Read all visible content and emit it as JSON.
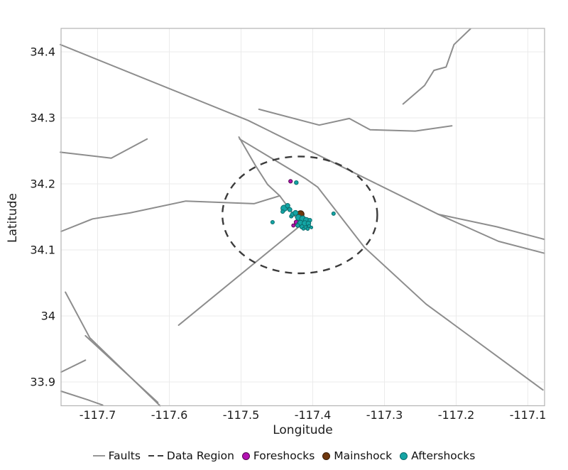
{
  "chart_data": {
    "type": "scatter",
    "title": "",
    "xlabel": "Longitude",
    "ylabel": "Latitude",
    "xlim": [
      -117.751,
      -117.0767
    ],
    "ylim": [
      33.864,
      34.4355
    ],
    "grid": true,
    "legend_position": "bottom",
    "x_ticks": {
      "values": [
        -117.7,
        -117.6,
        -117.5,
        -117.4,
        -117.3,
        -117.2,
        -117.1
      ],
      "labels": [
        "-117.7",
        "-117.6",
        "-117.5",
        "-117.4",
        "-117.3",
        "-117.2",
        "-117.1"
      ]
    },
    "y_ticks": {
      "values": [
        34.4,
        34.3,
        34.2,
        34.1,
        34.0,
        33.9
      ],
      "labels": [
        "34.4",
        "34.3",
        "34.2",
        "34.1",
        "34",
        "33.9"
      ]
    },
    "faults": [
      [
        [
          -117.752,
          34.411
        ],
        [
          -117.49,
          34.296
        ],
        [
          -117.225,
          34.154
        ]
      ],
      [
        [
          -117.225,
          34.154
        ],
        [
          -117.143,
          34.135
        ],
        [
          -117.077,
          34.116
        ]
      ],
      [
        [
          -117.225,
          34.154
        ],
        [
          -117.141,
          34.113
        ],
        [
          -117.077,
          34.095
        ]
      ],
      [
        [
          -117.475,
          34.313
        ],
        [
          -117.391,
          34.289
        ],
        [
          -117.349,
          34.299
        ],
        [
          -117.32,
          34.282
        ],
        [
          -117.257,
          34.28
        ],
        [
          -117.206,
          34.288
        ]
      ],
      [
        [
          -117.752,
          34.248
        ],
        [
          -117.681,
          34.239
        ],
        [
          -117.631,
          34.268
        ]
      ],
      [
        [
          -117.751,
          34.128
        ],
        [
          -117.707,
          34.147
        ],
        [
          -117.655,
          34.156
        ],
        [
          -117.577,
          34.174
        ],
        [
          -117.482,
          34.17
        ],
        [
          -117.446,
          34.182
        ]
      ],
      [
        [
          -117.502,
          34.268
        ],
        [
          -117.41,
          34.208
        ],
        [
          -117.393,
          34.195
        ],
        [
          -117.328,
          34.104
        ],
        [
          -117.242,
          34.018
        ],
        [
          -117.079,
          33.888
        ]
      ],
      [
        [
          -117.503,
          34.271
        ],
        [
          -117.48,
          34.228
        ],
        [
          -117.463,
          34.199
        ],
        [
          -117.446,
          34.182
        ],
        [
          -117.416,
          34.138
        ],
        [
          -117.587,
          33.986
        ]
      ],
      [
        [
          -117.745,
          34.036
        ],
        [
          -117.711,
          33.967
        ],
        [
          -117.613,
          33.864
        ]
      ],
      [
        [
          -117.717,
          33.97
        ],
        [
          -117.616,
          33.869
        ]
      ],
      [
        [
          -117.751,
          33.915
        ],
        [
          -117.717,
          33.933
        ]
      ],
      [
        [
          -117.751,
          33.886
        ],
        [
          -117.714,
          33.873
        ],
        [
          -117.693,
          33.865
        ]
      ],
      [
        [
          -117.274,
          34.321
        ],
        [
          -117.244,
          34.349
        ],
        [
          -117.231,
          34.372
        ],
        [
          -117.214,
          34.377
        ],
        [
          -117.203,
          34.411
        ],
        [
          -117.18,
          34.435
        ]
      ]
    ],
    "data_region": {
      "center": [
        -117.418,
        34.153
      ],
      "radius_lon_deg": 0.108,
      "radius_lat_deg": 0.0885
    },
    "series": [
      {
        "name": "Foreshocks",
        "color": "#b312b3",
        "stroke": "#54064f",
        "points": [
          [
            -117.431,
            34.204,
            2.6
          ],
          [
            -117.423,
            34.142,
            3.0
          ],
          [
            -117.427,
            34.137,
            2.4
          ]
        ]
      },
      {
        "name": "Mainshock",
        "color": "#70380e",
        "stroke": "#381d07",
        "points": [
          [
            -117.417,
            34.154,
            5.0
          ]
        ]
      },
      {
        "name": "Aftershocks",
        "color": "#14a5a5",
        "stroke": "#0b6b6b",
        "points": [
          [
            -117.456,
            34.142,
            2.5
          ],
          [
            -117.371,
            34.155,
            2.5
          ],
          [
            -117.423,
            34.202,
            2.7
          ],
          [
            -117.44,
            34.163,
            4.5
          ],
          [
            -117.435,
            34.167,
            3.2
          ],
          [
            -117.442,
            34.158,
            2.5
          ],
          [
            -117.432,
            34.161,
            3.0
          ],
          [
            -117.43,
            34.151,
            2.5
          ],
          [
            -117.428,
            34.154,
            3.0
          ],
          [
            -117.424,
            34.156,
            3.5
          ],
          [
            -117.42,
            34.149,
            4.0
          ],
          [
            -117.414,
            34.147,
            4.3
          ],
          [
            -117.409,
            34.145,
            4.0
          ],
          [
            -117.404,
            34.145,
            2.7
          ],
          [
            -117.419,
            34.14,
            3.0
          ],
          [
            -117.417,
            34.141,
            3.7
          ],
          [
            -117.411,
            34.14,
            4.0
          ],
          [
            -117.406,
            34.14,
            3.3
          ],
          [
            -117.421,
            34.137,
            2.7
          ],
          [
            -117.415,
            34.135,
            3.0
          ],
          [
            -117.41,
            34.134,
            2.7
          ],
          [
            -117.405,
            34.136,
            2.3
          ],
          [
            -117.402,
            34.134,
            2.0
          ],
          [
            -117.407,
            34.132,
            2.2
          ],
          [
            -117.413,
            34.132,
            2.0
          ]
        ]
      }
    ]
  },
  "legend": {
    "items": [
      {
        "label": "Faults",
        "swatch": "line",
        "color": "#979797"
      },
      {
        "label": "Data Region",
        "swatch": "dashed",
        "color": "#3b3b3b"
      },
      {
        "label": "Foreshocks",
        "swatch": "dot",
        "color": "#b312b3",
        "stroke": "#54064f"
      },
      {
        "label": "Mainshock",
        "swatch": "dot",
        "color": "#70380e",
        "stroke": "#381d07"
      },
      {
        "label": "Aftershocks",
        "swatch": "dot",
        "color": "#14a5a5",
        "stroke": "#0b6b6b"
      }
    ]
  },
  "style": {
    "fault_color": "#8d8d8d",
    "region_color": "#3b3b3b",
    "grid_color": "#ebebeb",
    "border_color": "#b4b4b4",
    "tick_text_color": "#1c1c1c"
  }
}
